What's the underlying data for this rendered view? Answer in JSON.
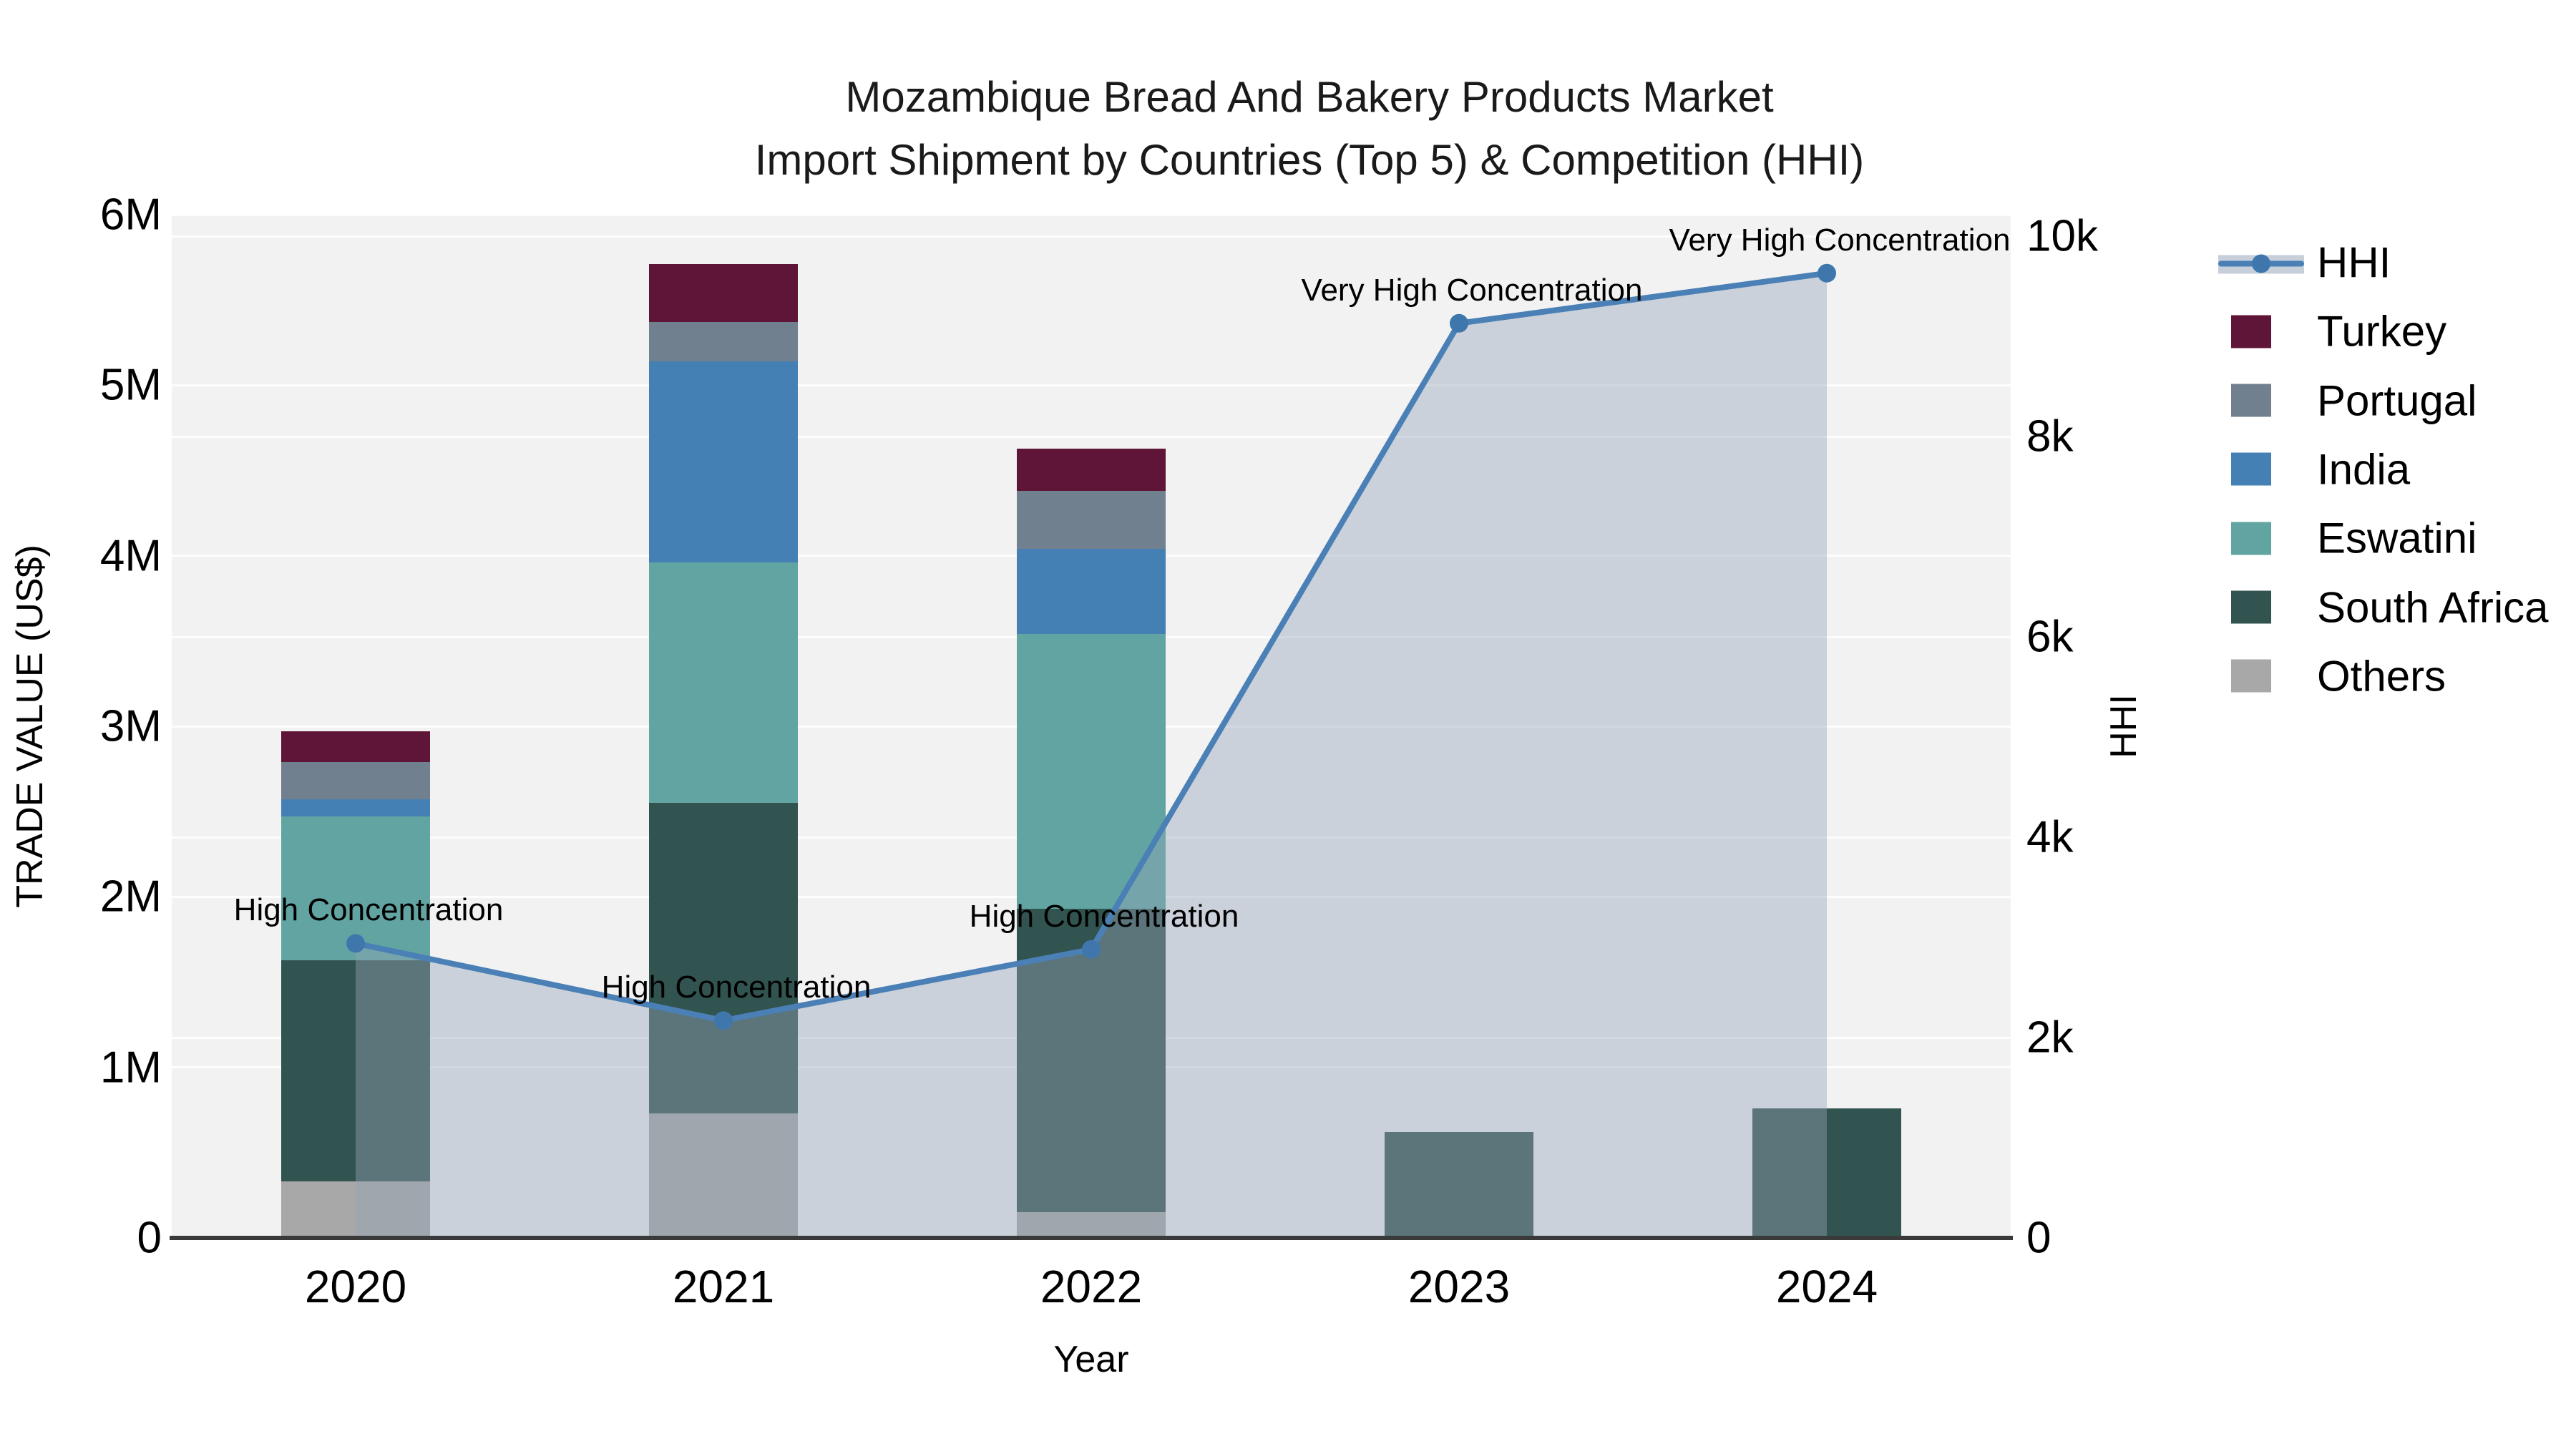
{
  "title": {
    "line1": "Mozambique Bread And Bakery Products Market",
    "line2": "Import Shipment by Countries (Top 5) & Competition (HHI)"
  },
  "axes": {
    "y_left": {
      "label": "TRADE VALUE (US$)",
      "ticks": [
        {
          "label": "0",
          "value": 0
        },
        {
          "label": "1M",
          "value": 1000000
        },
        {
          "label": "2M",
          "value": 2000000
        },
        {
          "label": "3M",
          "value": 3000000
        },
        {
          "label": "4M",
          "value": 4000000
        },
        {
          "label": "5M",
          "value": 5000000
        },
        {
          "label": "6M",
          "value": 6000000
        }
      ]
    },
    "y_right": {
      "label": "HHI",
      "ticks": [
        {
          "label": "0",
          "value": 0
        },
        {
          "label": "2k",
          "value": 2000
        },
        {
          "label": "4k",
          "value": 4000
        },
        {
          "label": "6k",
          "value": 6000
        },
        {
          "label": "8k",
          "value": 8000
        },
        {
          "label": "10k",
          "value": 10000
        }
      ]
    },
    "x": {
      "label": "Year"
    }
  },
  "legend": [
    {
      "label": "HHI",
      "type": "line"
    },
    {
      "label": "Turkey",
      "type": "swatch",
      "color": "#5f1537"
    },
    {
      "label": "Portugal",
      "type": "swatch",
      "color": "#71808f"
    },
    {
      "label": "India",
      "type": "swatch",
      "color": "#4580b5"
    },
    {
      "label": "Eswatini",
      "type": "swatch",
      "color": "#61a4a2"
    },
    {
      "label": "South Africa",
      "type": "swatch",
      "color": "#325450"
    },
    {
      "label": "Others",
      "type": "swatch",
      "color": "#a8a8a8"
    }
  ],
  "chart_data": {
    "type": "combo: stacked-bar (left axis) + line-area (right axis)",
    "categories": [
      "2020",
      "2021",
      "2022",
      "2023",
      "2024"
    ],
    "bar_series_bottom_to_top": [
      {
        "name": "Others",
        "color": "#a8a8a8",
        "values": [
          330000,
          730000,
          150000,
          0,
          0
        ]
      },
      {
        "name": "South Africa",
        "color": "#325450",
        "values": [
          1300000,
          1820000,
          1780000,
          620000,
          760000
        ]
      },
      {
        "name": "Eswatini",
        "color": "#61a4a2",
        "values": [
          840000,
          1410000,
          1610000,
          0,
          0
        ]
      },
      {
        "name": "India",
        "color": "#4580b5",
        "values": [
          100000,
          1180000,
          500000,
          0,
          0
        ]
      },
      {
        "name": "Portugal",
        "color": "#71808f",
        "values": [
          220000,
          230000,
          340000,
          0,
          0
        ]
      },
      {
        "name": "Turkey",
        "color": "#5f1537",
        "values": [
          180000,
          340000,
          250000,
          0,
          0
        ]
      }
    ],
    "line_series": {
      "name": "HHI",
      "axis": "right",
      "color": "#4a80b5",
      "dot_color": "#3f77ad",
      "area_color": "rgba(148,164,184,0.42)",
      "values": [
        2940,
        2170,
        2880,
        9130,
        9630
      ]
    },
    "annotations": [
      {
        "category": "2020",
        "text": "High Concentration"
      },
      {
        "category": "2021",
        "text": "High Concentration"
      },
      {
        "category": "2022",
        "text": "High Concentration"
      },
      {
        "category": "2023",
        "text": "Very High Concentration"
      },
      {
        "category": "2024",
        "text": "Very High Concentration"
      }
    ],
    "ylim_left": [
      0,
      6000000
    ],
    "ylim_right": [
      0,
      10000
    ],
    "grid": true,
    "legend_position": "right"
  },
  "colors": {
    "plot_bg": "#f2f2f3",
    "grid": "#fdfdfd",
    "axis_line": "#3a3a3a",
    "text": "#000000"
  }
}
